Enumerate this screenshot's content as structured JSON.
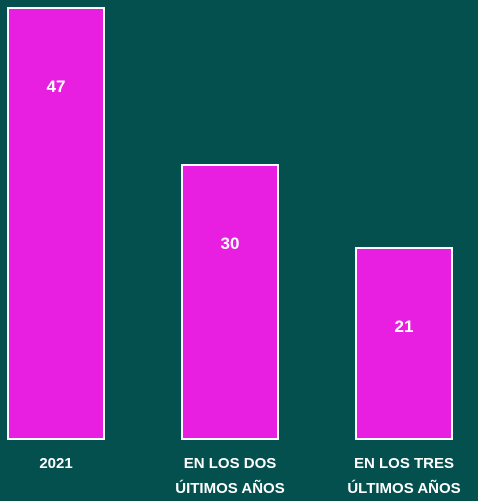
{
  "chart_data": {
    "type": "bar",
    "categories": [
      "2021",
      "EN LOS DOS ÚITIMOS AÑOS",
      "EN LOS TRES ÚLTIMOS AÑOS"
    ],
    "values": [
      47,
      30,
      21
    ],
    "color": "#e81ee0",
    "ylim": [
      0,
      47
    ],
    "grid": false
  }
}
